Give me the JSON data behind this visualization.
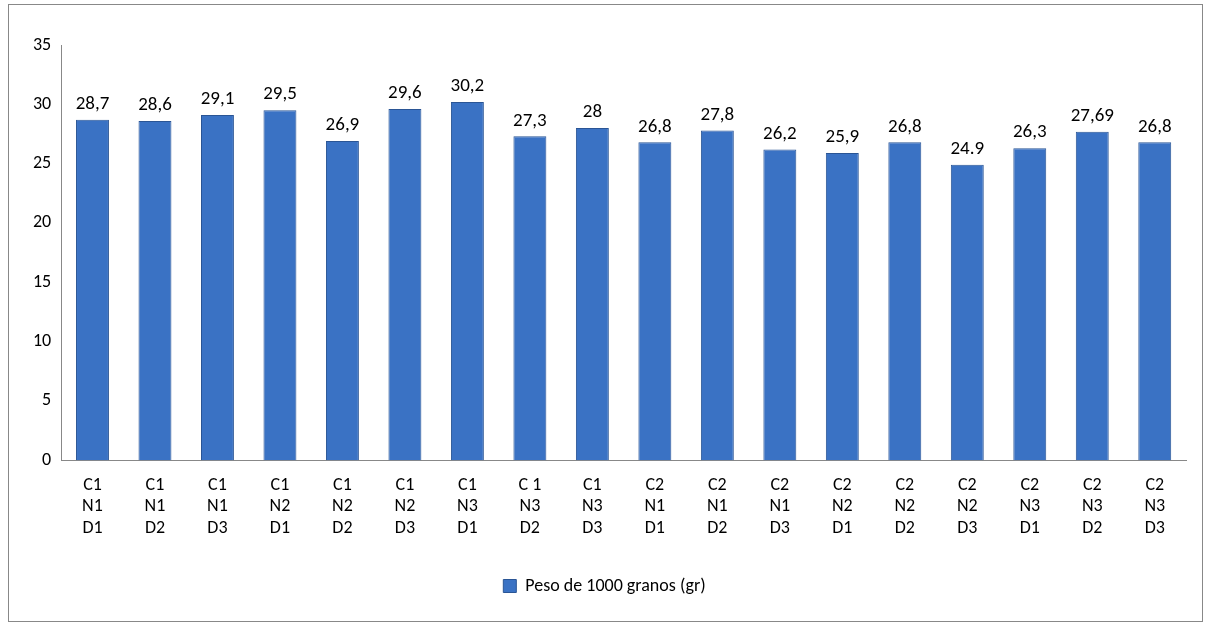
{
  "chart_data": {
    "type": "bar",
    "categories": [
      "C1\nN1\nD1",
      "C1\nN1\nD2",
      "C1\nN1\nD3",
      "C1\nN2\nD1",
      "C1\nN2\nD2",
      "C1\nN2\nD3",
      "C1\nN3\nD1",
      "C 1\nN3\nD2",
      "C1\nN3\nD3",
      "C2\nN1\nD1",
      "C2\nN1\nD2",
      "C2\nN1\nD3",
      "C2\nN2\nD1",
      "C2\nN2\nD2",
      "C2\nN2\nD3",
      "C2\nN3\nD1",
      "C2\nN3\nD2",
      "C2\nN3\nD3"
    ],
    "series": [
      {
        "name": "Peso de 1000 granos (gr)",
        "color": "#3a72c4",
        "values": [
          28.7,
          28.6,
          29.1,
          29.5,
          26.9,
          29.6,
          30.2,
          27.3,
          28,
          26.8,
          27.8,
          26.2,
          25.9,
          26.8,
          24.9,
          26.3,
          27.69,
          26.8
        ],
        "value_labels": [
          "28,7",
          "28,6",
          "29,1",
          "29,5",
          "26,9",
          "29,6",
          "30,2",
          "27,3",
          "28",
          "26,8",
          "27,8",
          "26,2",
          "25,9",
          "26,8",
          "24.9",
          "26,3",
          "27,69",
          "26,8"
        ]
      }
    ],
    "ylim": [
      0,
      35
    ],
    "yticks": [
      0,
      5,
      10,
      15,
      20,
      25,
      30,
      35
    ],
    "grid": false,
    "legend": "bottom"
  }
}
